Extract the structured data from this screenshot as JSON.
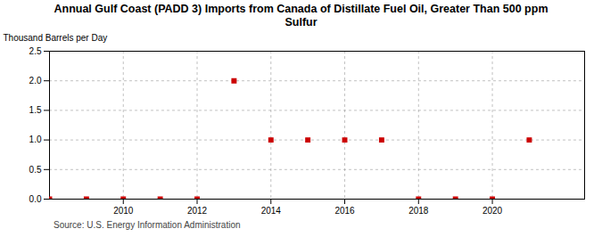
{
  "chart_data": {
    "type": "scatter",
    "title": "Annual Gulf Coast (PADD 3) Imports from Canada of Distillate Fuel Oil, Greater Than 500 ppm\nSulfur",
    "ylabel": "Thousand Barrels per Day",
    "source": "Source: U.S. Energy Information Administration",
    "x": [
      2008,
      2009,
      2010,
      2011,
      2012,
      2013,
      2014,
      2015,
      2016,
      2017,
      2018,
      2019,
      2020,
      2021
    ],
    "values": [
      0,
      0,
      0,
      0,
      0,
      2,
      1,
      1,
      1,
      1,
      0,
      0,
      0,
      1
    ],
    "color": "#cc0000",
    "marker": "square",
    "xlim": [
      2008.0,
      2022.5
    ],
    "xticks": [
      2010,
      2012,
      2014,
      2016,
      2018,
      2020
    ],
    "ylim": [
      0,
      2.5
    ],
    "yticks": [
      {
        "value": 0.0,
        "label": "0.0"
      },
      0.5,
      {
        "value": 1.0,
        "label": "1.0"
      },
      1.5,
      {
        "value": 2.0,
        "label": "2.0"
      },
      2.5
    ],
    "grid": true
  }
}
